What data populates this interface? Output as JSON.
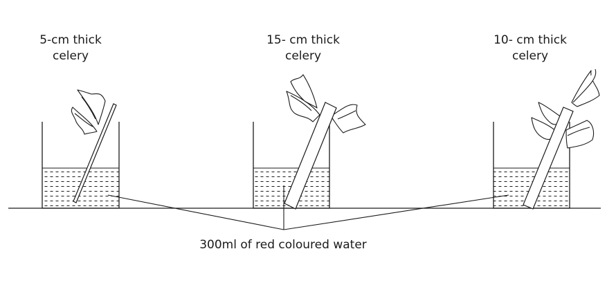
{
  "setups": [
    {
      "label_line1": "5-cm thick",
      "label_line2": "celery"
    },
    {
      "label_line1": "15- cm thick",
      "label_line2": "celery"
    },
    {
      "label_line1": "10- cm thick",
      "label_line2": "celery"
    }
  ],
  "caption": "300ml of red coloured water",
  "colors": {
    "stroke": "#1a1a1a",
    "background": "#ffffff"
  }
}
